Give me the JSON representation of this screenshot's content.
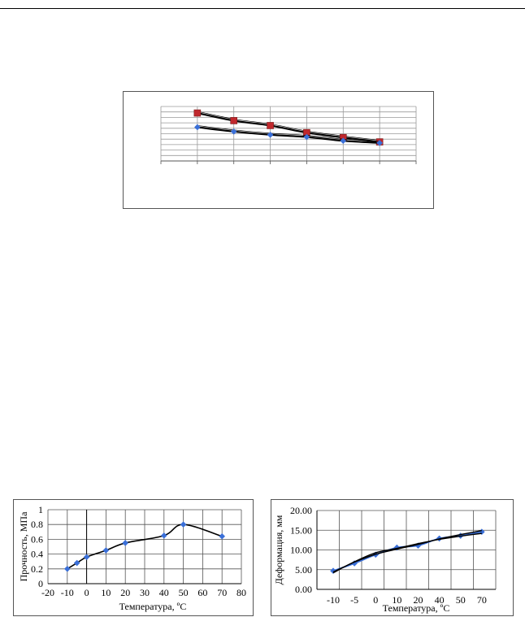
{
  "chart_data": [
    {
      "type": "line",
      "title": "",
      "xlabel": "",
      "ylabel": "",
      "x": [
        1,
        2,
        3,
        4,
        5,
        6
      ],
      "ylim": [
        0,
        10
      ],
      "grid": true,
      "series": [
        {
          "values": [
            8.8,
            7.4,
            6.5,
            5.2,
            4.3,
            3.5
          ],
          "color": "#c0282d",
          "marker": "square"
        },
        {
          "values": [
            6.2,
            5.4,
            4.8,
            4.4,
            3.7,
            3.3
          ],
          "color": "#3a6fd8",
          "marker": "diamond"
        }
      ]
    },
    {
      "type": "line",
      "title": "",
      "xlabel": "Температура,  ºС",
      "ylabel": "Прочность, МПа",
      "x": [
        -10,
        -5,
        0,
        10,
        20,
        40,
        50,
        70
      ],
      "xlim": [
        -20,
        80
      ],
      "xticks": [
        "-20",
        "-10",
        "0",
        "10",
        "20",
        "30",
        "40",
        "50",
        "60",
        "70",
        "80"
      ],
      "ylim": [
        0,
        1
      ],
      "yticks": [
        "0",
        "0.2",
        "0.4",
        "0.6",
        "0.8",
        "1"
      ],
      "grid": true,
      "series": [
        {
          "values": [
            0.2,
            0.28,
            0.36,
            0.45,
            0.55,
            0.65,
            0.8,
            0.64
          ],
          "color": "#3a6fd8",
          "marker": "diamond"
        }
      ]
    },
    {
      "type": "line",
      "title": "",
      "xlabel": "Температура,  ºС",
      "ylabel": "Деформация, мм",
      "categories": [
        "-10",
        "-5",
        "0",
        "10",
        "20",
        "40",
        "50",
        "70"
      ],
      "ylim": [
        0,
        20
      ],
      "yticks": [
        "0.00",
        "5.00",
        "10.00",
        "15.00",
        "20.00"
      ],
      "grid": true,
      "series": [
        {
          "values": [
            4.7,
            6.6,
            8.8,
            10.6,
            11.1,
            12.9,
            13.6,
            14.6
          ],
          "color": "#3a6fd8",
          "marker": "diamond"
        },
        {
          "values": [
            4.2,
            7.0,
            9.3,
            10.4,
            11.6,
            12.7,
            13.5,
            14.2
          ],
          "color": "#000000",
          "marker": "none"
        },
        {
          "values": [
            4.4,
            6.9,
            8.9,
            10.2,
            11.4,
            12.8,
            13.9,
            14.9
          ],
          "color": "#000000",
          "marker": "none"
        }
      ]
    }
  ]
}
